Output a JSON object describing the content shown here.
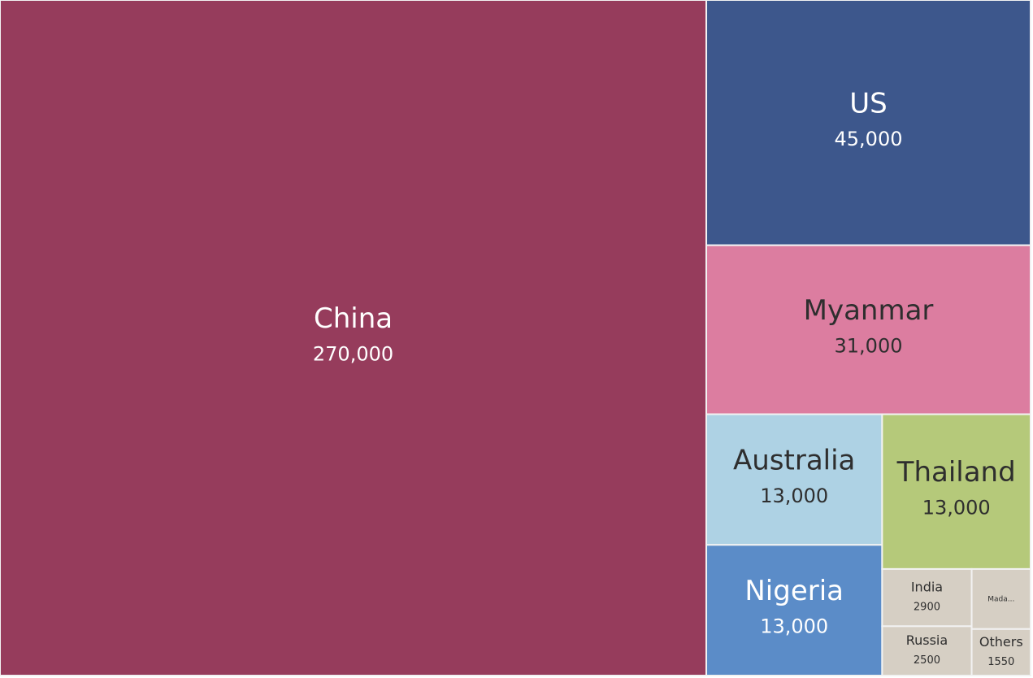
{
  "chart_data": {
    "type": "treemap",
    "categories": [
      "China",
      "US",
      "Myanmar",
      "Australia",
      "Nigeria",
      "Thailand",
      "India",
      "Russia",
      "Mada...",
      "Others"
    ],
    "values": [
      270000,
      45000,
      31000,
      13000,
      13000,
      13000,
      2900,
      2500,
      2000,
      1550
    ],
    "value_labels": [
      "270,000",
      "45,000",
      "31,000",
      "13,000",
      "13,000",
      "13,000",
      "2900",
      "2500",
      null,
      "1550"
    ],
    "colors": [
      "#963c5c",
      "#3d578c",
      "#dc7da0",
      "#aed2e4",
      "#5b8cc8",
      "#b5c97a",
      "#d6cfc4",
      "#d6cfc4",
      "#d6cfc4",
      "#d6cfc4"
    ]
  }
}
